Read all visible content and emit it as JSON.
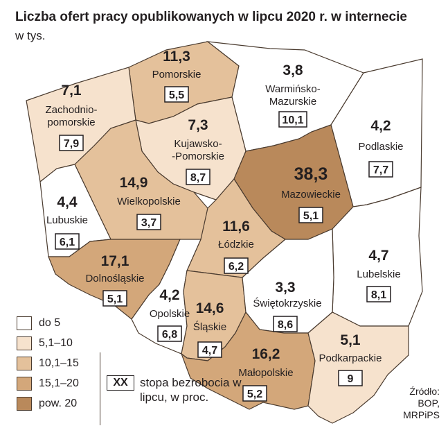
{
  "title": "Liczba ofert pracy  opublikowanych w lipcu 2020 r. w internecie",
  "subtitle": "w tys.",
  "colors": {
    "do5": "#ffffff",
    "5_10": "#f6e2cd",
    "10_15": "#e4c19b",
    "15_20": "#d3a77a",
    "pow20": "#b9895b",
    "border": "#4a3b2f"
  },
  "regions": [
    {
      "name": "Pomorskie",
      "offers": "11,3",
      "unemployment": "5,5",
      "class": "10_15"
    },
    {
      "name": "Warmińsko-\nMazurskie",
      "offers": "3,8",
      "unemployment": "10,1",
      "class": "do5"
    },
    {
      "name": "Zachodnio-\npomorskie",
      "offers": "7,1",
      "unemployment": "7,9",
      "class": "5_10"
    },
    {
      "name": "Kujawsko-\n-Pomorskie",
      "offers": "7,3",
      "unemployment": "8,7",
      "class": "5_10"
    },
    {
      "name": "Podlaskie",
      "offers": "4,2",
      "unemployment": "7,7",
      "class": "do5"
    },
    {
      "name": "Mazowieckie",
      "offers": "38,3",
      "unemployment": "5,1",
      "class": "pow20"
    },
    {
      "name": "Wielkopolskie",
      "offers": "14,9",
      "unemployment": "3,7",
      "class": "10_15"
    },
    {
      "name": "Lubuskie",
      "offers": "4,4",
      "unemployment": "6,1",
      "class": "do5"
    },
    {
      "name": "Łódzkie",
      "offers": "11,6",
      "unemployment": "6,2",
      "class": "10_15"
    },
    {
      "name": "Lubelskie",
      "offers": "4,7",
      "unemployment": "8,1",
      "class": "do5"
    },
    {
      "name": "Dolnośląskie",
      "offers": "17,1",
      "unemployment": "5,1",
      "class": "15_20"
    },
    {
      "name": "Opolskie",
      "offers": "4,2",
      "unemployment": "6,8",
      "class": "do5"
    },
    {
      "name": "Śląskie",
      "offers": "14,6",
      "unemployment": "4,7",
      "class": "10_15"
    },
    {
      "name": "Świętokrzyskie",
      "offers": "3,3",
      "unemployment": "8,6",
      "class": "do5"
    },
    {
      "name": "Małopolskie",
      "offers": "16,2",
      "unemployment": "5,2",
      "class": "15_20"
    },
    {
      "name": "Podkarpackie",
      "offers": "5,1",
      "unemployment": "9",
      "class": "5_10"
    }
  ],
  "legend": [
    {
      "label": "do 5",
      "class": "do5"
    },
    {
      "label": "5,1–10",
      "class": "5_10"
    },
    {
      "label": "10,1–15",
      "class": "10_15"
    },
    {
      "label": "15,1–20",
      "class": "15_20"
    },
    {
      "label": "pow. 20",
      "class": "pow20"
    }
  ],
  "unemployment_key": {
    "box": "XX",
    "text": "stopa bezrobocia w lipcu, w proc."
  },
  "source": {
    "label": "Źródło:",
    "line1": "BOP,",
    "line2": "MRPiPS"
  }
}
